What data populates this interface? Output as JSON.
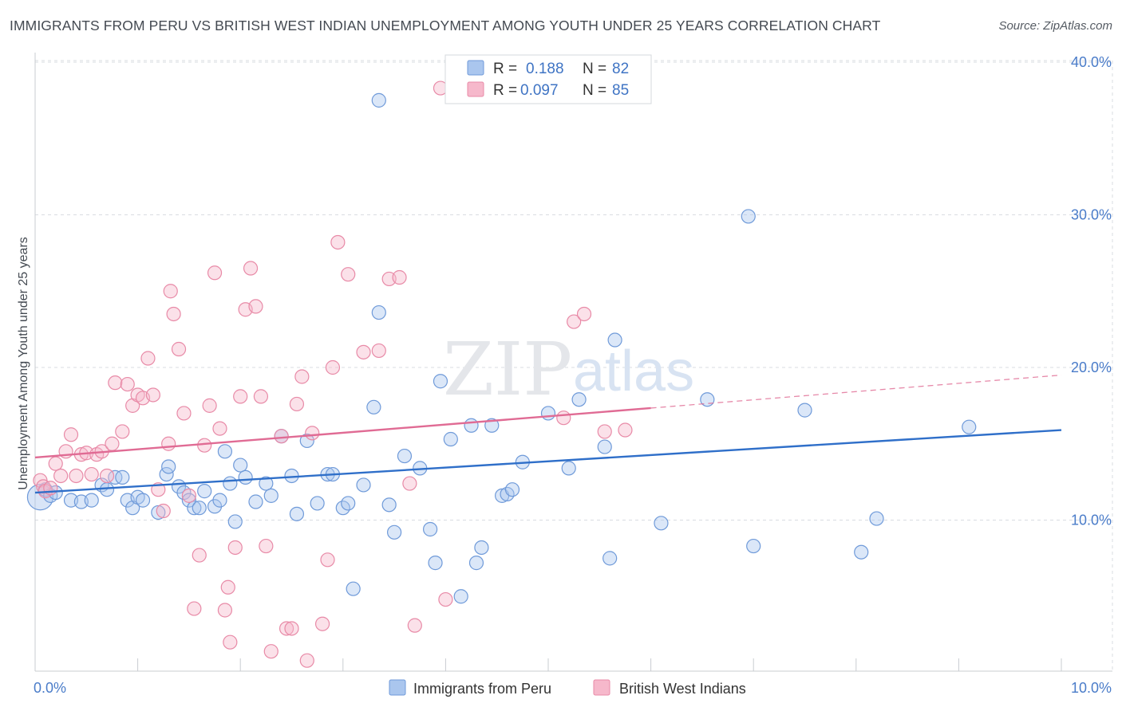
{
  "title": "IMMIGRANTS FROM PERU VS BRITISH WEST INDIAN UNEMPLOYMENT AMONG YOUTH UNDER 25 YEARS CORRELATION CHART",
  "source": "Source: ZipAtlas.com",
  "watermark": {
    "part1": "ZIP",
    "part2": "atlas"
  },
  "colors": {
    "blue_fill": "#aac6ee",
    "blue_stroke": "#6f9ad9",
    "blue_line": "#2f6fc9",
    "pink_fill": "#f6b8cb",
    "pink_stroke": "#e88aa7",
    "pink_line": "#e06b94",
    "grid": "#d9dce1",
    "axis_text": "#4a7cc9"
  },
  "legend": {
    "row1": {
      "r_label": "R =",
      "r_value": "0.188",
      "n_label": "N =",
      "n_value": "82"
    },
    "row2": {
      "r_label": "R =",
      "r_value": "0.097",
      "n_label": "N =",
      "n_value": "85"
    }
  },
  "bottom_legend": {
    "series1": "Immigrants from Peru",
    "series2": "British West Indians"
  },
  "chart_data": {
    "type": "scatter",
    "title": "IMMIGRANTS FROM PERU VS BRITISH WEST INDIAN UNEMPLOYMENT AMONG YOUTH UNDER 25 YEARS CORRELATION CHART",
    "xlabel": "",
    "ylabel": "Unemployment Among Youth under 25 years",
    "xlim": [
      0,
      10
    ],
    "ylim": [
      0,
      40
    ],
    "x_tick_labels": [
      {
        "value": 0,
        "label": "0.0%"
      },
      {
        "value": 10,
        "label": "10.0%"
      }
    ],
    "y_tick_labels": [
      {
        "value": 10,
        "label": "10.0%"
      },
      {
        "value": 20,
        "label": "20.0%"
      },
      {
        "value": 30,
        "label": "30.0%"
      },
      {
        "value": 40,
        "label": "40.0%"
      }
    ],
    "series": [
      {
        "name": "Immigrants from Peru",
        "r": 0.188,
        "n": 82,
        "trend": {
          "x0": 0,
          "y0": 11.8,
          "x1": 10,
          "y1": 15.9,
          "dashed_from": null
        },
        "points": [
          [
            0.05,
            11.5,
            "L"
          ],
          [
            0.1,
            12.0
          ],
          [
            0.15,
            11.6
          ],
          [
            0.2,
            11.8
          ],
          [
            0.35,
            11.3
          ],
          [
            0.45,
            11.2
          ],
          [
            0.55,
            11.3
          ],
          [
            0.65,
            12.3
          ],
          [
            0.7,
            12.0
          ],
          [
            0.78,
            12.8
          ],
          [
            0.85,
            12.8
          ],
          [
            0.9,
            11.3
          ],
          [
            0.95,
            10.8
          ],
          [
            1.0,
            11.5
          ],
          [
            1.05,
            11.3
          ],
          [
            1.2,
            10.5
          ],
          [
            1.28,
            13.0
          ],
          [
            1.3,
            13.5
          ],
          [
            1.4,
            12.2
          ],
          [
            1.45,
            11.8
          ],
          [
            1.5,
            11.3
          ],
          [
            1.55,
            10.8
          ],
          [
            1.6,
            10.8
          ],
          [
            1.65,
            11.9
          ],
          [
            1.75,
            10.9
          ],
          [
            1.8,
            11.3
          ],
          [
            1.85,
            14.5
          ],
          [
            1.9,
            12.4
          ],
          [
            1.95,
            9.9
          ],
          [
            2.0,
            13.6
          ],
          [
            2.05,
            12.8
          ],
          [
            2.15,
            11.2
          ],
          [
            2.25,
            12.4
          ],
          [
            2.3,
            11.6
          ],
          [
            2.4,
            15.5
          ],
          [
            2.5,
            12.9
          ],
          [
            2.55,
            10.4
          ],
          [
            2.65,
            15.2
          ],
          [
            2.75,
            11.1
          ],
          [
            2.85,
            13.0
          ],
          [
            2.9,
            13.0
          ],
          [
            3.0,
            10.8
          ],
          [
            3.05,
            11.1
          ],
          [
            3.1,
            5.5
          ],
          [
            3.2,
            12.3
          ],
          [
            3.3,
            17.4
          ],
          [
            3.35,
            37.5
          ],
          [
            3.35,
            23.6
          ],
          [
            3.45,
            11.0
          ],
          [
            3.5,
            9.2
          ],
          [
            3.6,
            14.2
          ],
          [
            3.75,
            13.4
          ],
          [
            3.85,
            9.4
          ],
          [
            3.9,
            7.2
          ],
          [
            3.95,
            19.1
          ],
          [
            4.05,
            15.3
          ],
          [
            4.15,
            5.0
          ],
          [
            4.25,
            16.2
          ],
          [
            4.3,
            7.2
          ],
          [
            4.35,
            8.2
          ],
          [
            4.45,
            16.2
          ],
          [
            4.55,
            11.6
          ],
          [
            4.6,
            11.7
          ],
          [
            4.65,
            12.0
          ],
          [
            4.75,
            13.8
          ],
          [
            5.0,
            17.0
          ],
          [
            5.2,
            13.4
          ],
          [
            5.3,
            17.9
          ],
          [
            5.55,
            14.8
          ],
          [
            5.6,
            7.5
          ],
          [
            5.65,
            21.8
          ],
          [
            6.1,
            9.8
          ],
          [
            6.55,
            17.9
          ],
          [
            6.95,
            29.9
          ],
          [
            7.0,
            8.3
          ],
          [
            7.5,
            17.2
          ],
          [
            8.05,
            7.9
          ],
          [
            8.2,
            10.1
          ],
          [
            9.1,
            16.1
          ]
        ]
      },
      {
        "name": "British West Indians",
        "r": 0.097,
        "n": 85,
        "trend": {
          "x0": 0,
          "y0": 14.1,
          "x1": 10,
          "y1": 19.5,
          "dashed_from": 6.0
        },
        "points": [
          [
            0.05,
            12.6
          ],
          [
            0.08,
            12.2
          ],
          [
            0.1,
            11.9
          ],
          [
            0.15,
            12.1
          ],
          [
            0.2,
            13.7
          ],
          [
            0.25,
            12.9
          ],
          [
            0.3,
            14.5
          ],
          [
            0.35,
            15.6
          ],
          [
            0.4,
            12.9
          ],
          [
            0.45,
            14.3
          ],
          [
            0.5,
            14.4
          ],
          [
            0.55,
            13.0
          ],
          [
            0.6,
            14.3
          ],
          [
            0.65,
            14.5
          ],
          [
            0.7,
            12.9
          ],
          [
            0.75,
            15.0
          ],
          [
            0.78,
            19.0
          ],
          [
            0.85,
            15.8
          ],
          [
            0.9,
            18.9
          ],
          [
            0.95,
            17.5
          ],
          [
            1.0,
            18.2
          ],
          [
            1.05,
            18.0
          ],
          [
            1.1,
            20.6
          ],
          [
            1.15,
            18.2
          ],
          [
            1.2,
            12.0
          ],
          [
            1.25,
            10.6
          ],
          [
            1.3,
            15.0
          ],
          [
            1.32,
            25.0
          ],
          [
            1.35,
            23.5
          ],
          [
            1.4,
            21.2
          ],
          [
            1.45,
            17.0
          ],
          [
            1.5,
            11.6
          ],
          [
            1.55,
            4.2
          ],
          [
            1.6,
            7.7
          ],
          [
            1.65,
            14.9
          ],
          [
            1.7,
            17.5
          ],
          [
            1.75,
            26.2
          ],
          [
            1.8,
            16.0
          ],
          [
            1.85,
            4.1
          ],
          [
            1.88,
            5.6
          ],
          [
            1.9,
            2.0
          ],
          [
            1.95,
            8.2
          ],
          [
            2.0,
            18.1
          ],
          [
            2.05,
            23.8
          ],
          [
            2.1,
            26.5
          ],
          [
            2.15,
            24.0
          ],
          [
            2.2,
            18.1
          ],
          [
            2.25,
            8.3
          ],
          [
            2.3,
            1.4
          ],
          [
            2.4,
            15.5
          ],
          [
            2.45,
            2.9
          ],
          [
            2.5,
            2.9
          ],
          [
            2.55,
            17.6
          ],
          [
            2.6,
            19.4
          ],
          [
            2.65,
            0.8
          ],
          [
            2.7,
            15.7
          ],
          [
            2.8,
            3.2
          ],
          [
            2.85,
            7.4
          ],
          [
            2.9,
            20.0
          ],
          [
            2.95,
            28.2
          ],
          [
            3.05,
            26.1
          ],
          [
            3.2,
            21.0
          ],
          [
            3.35,
            21.1
          ],
          [
            3.45,
            25.8
          ],
          [
            3.55,
            25.9
          ],
          [
            3.65,
            12.4
          ],
          [
            3.7,
            3.1
          ],
          [
            3.95,
            38.3
          ],
          [
            4.0,
            4.8
          ],
          [
            5.15,
            16.7
          ],
          [
            5.25,
            23.0
          ],
          [
            5.35,
            23.5
          ],
          [
            5.55,
            15.8
          ],
          [
            5.75,
            15.9
          ]
        ]
      }
    ]
  }
}
